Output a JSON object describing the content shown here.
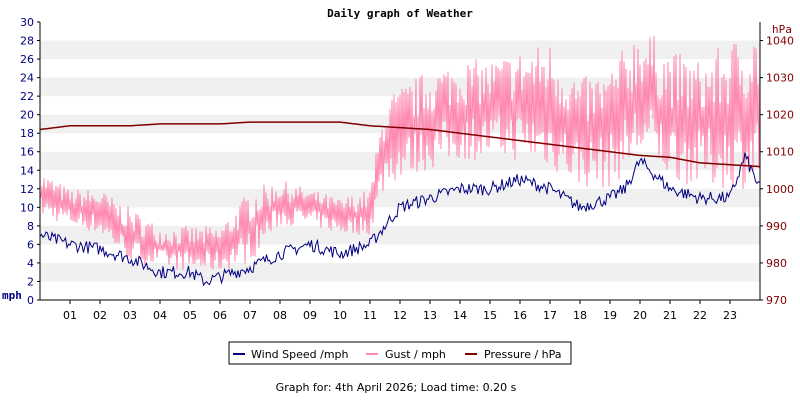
{
  "chart_data": {
    "type": "line",
    "title": "Daily graph of Weather",
    "left_unit": "mph",
    "right_unit": "hPa",
    "x": {
      "tick_labels": [
        "01",
        "02",
        "03",
        "04",
        "05",
        "06",
        "07",
        "08",
        "09",
        "10",
        "11",
        "12",
        "13",
        "14",
        "15",
        "16",
        "17",
        "18",
        "19",
        "20",
        "21",
        "22",
        "23"
      ],
      "range_hours": [
        0,
        24
      ]
    },
    "y_left": {
      "range": [
        0,
        30
      ],
      "tick_labels": [
        "0",
        "2",
        "4",
        "6",
        "8",
        "10",
        "12",
        "14",
        "16",
        "18",
        "20",
        "22",
        "24",
        "26",
        "28",
        "30"
      ]
    },
    "y_right": {
      "range": [
        970,
        1045
      ],
      "tick_labels": [
        "970",
        "980",
        "990",
        "1000",
        "1010",
        "1020",
        "1030",
        "1040"
      ]
    },
    "grid": "alternating horizontal bands",
    "colors": {
      "wind": "#000080",
      "gust": "#ff88b0",
      "pressure": "#800000",
      "left_axis_text": "#000080",
      "right_axis_text": "#800000",
      "band": "#f0f0f0"
    },
    "series": [
      {
        "name": "Wind Speed /mph",
        "axis": "left",
        "hour": [
          0,
          1,
          2,
          3,
          4,
          5,
          5.5,
          6,
          7,
          8,
          9,
          10,
          11,
          11.5,
          12,
          13,
          14,
          15,
          16,
          17,
          18,
          19,
          19.5,
          20,
          21,
          22,
          23,
          23.5,
          24
        ],
        "values": [
          7,
          6,
          5.5,
          4.5,
          3,
          3,
          2,
          2.5,
          3.5,
          5,
          6,
          5,
          6,
          8,
          10,
          11,
          12,
          12,
          13,
          12,
          10,
          11,
          12,
          15,
          12,
          11,
          11,
          15.5,
          12
        ]
      },
      {
        "name": "Gust / mph",
        "axis": "left",
        "hour": [
          0,
          1,
          2,
          3,
          4,
          5,
          6,
          7,
          8,
          9,
          10,
          11,
          11.5,
          12,
          13,
          14,
          15,
          16,
          17,
          18,
          19,
          20,
          21,
          22,
          23,
          24
        ],
        "low": [
          9,
          8,
          7,
          4,
          3.5,
          3,
          3,
          4,
          8,
          8,
          7,
          7,
          12,
          13,
          14,
          15,
          15,
          15,
          14,
          12,
          12,
          15,
          13,
          12,
          12,
          12
        ],
        "high": [
          14,
          12,
          12,
          10,
          8,
          8,
          8,
          12,
          13,
          12,
          11,
          12,
          22,
          23,
          25,
          26,
          26,
          27,
          28,
          24,
          25,
          30,
          27,
          26,
          28,
          30
        ]
      },
      {
        "name": "Pressure / hPa",
        "axis": "right",
        "hour": [
          0,
          1,
          2,
          3,
          4,
          5,
          6,
          7,
          8,
          9,
          10,
          11,
          12,
          13,
          14,
          15,
          16,
          17,
          18,
          19,
          20,
          21,
          22,
          23,
          24
        ],
        "values": [
          1016,
          1017,
          1017,
          1017,
          1017.5,
          1017.5,
          1017.5,
          1018,
          1018,
          1018,
          1018,
          1017,
          1016.5,
          1016,
          1015,
          1014,
          1013,
          1012,
          1011,
          1010,
          1009,
          1008.5,
          1007,
          1006.5,
          1006
        ]
      }
    ]
  },
  "footer": {
    "text": "Graph for: 4th April 2026; Load time: 0.20 s"
  }
}
